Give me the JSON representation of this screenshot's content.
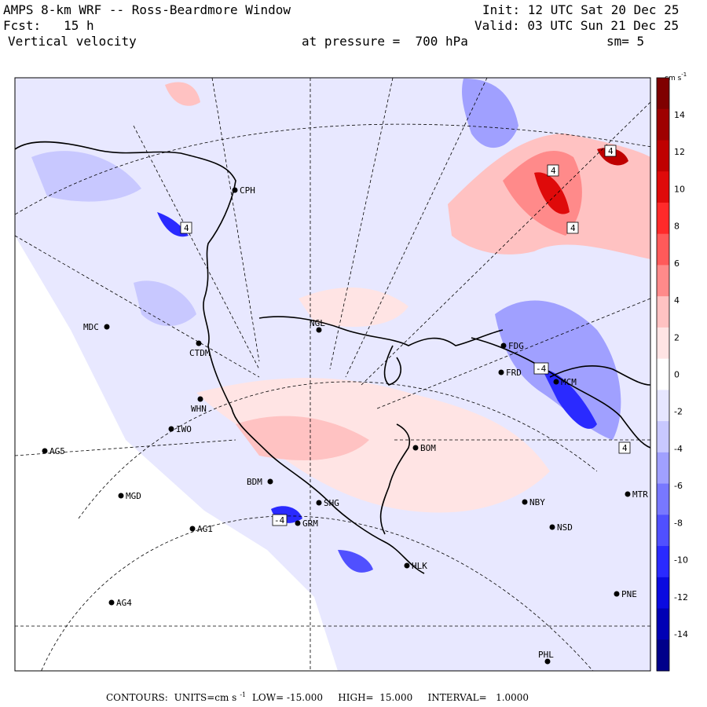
{
  "header": {
    "title": "AMPS 8-km WRF -- Ross-Beardmore Window",
    "forecast": "Fcst:   15 h",
    "variable": "Vertical velocity",
    "init": "Init: 12 UTC Sat 20 Dec 25",
    "valid": "Valid: 03 UTC Sun 21 Dec 25",
    "pressure": "at pressure =  700 hPa",
    "smoothing": "sm= 5"
  },
  "colorbar": {
    "units": "cm s",
    "units_exp": "-1",
    "ticks": [
      "14",
      "12",
      "10",
      "8",
      "6",
      "4",
      "2",
      "0",
      "-2",
      "-4",
      "-6",
      "-8",
      "-10",
      "-12",
      "-14"
    ],
    "colors": [
      "#7f0000",
      "#9e0000",
      "#bf0000",
      "#df0a0a",
      "#ff2a2a",
      "#ff5a5a",
      "#ff8a8a",
      "#ffc2c2",
      "#ffe4e4",
      "#ffffff",
      "#e6e6ff",
      "#c8c8ff",
      "#a0a0ff",
      "#7878ff",
      "#5050ff",
      "#2a2aff",
      "#0a0ae0",
      "#0000b4",
      "#00008a"
    ]
  },
  "stations": [
    {
      "id": "CPH"
    },
    {
      "id": "MDC"
    },
    {
      "id": "CTDM"
    },
    {
      "id": "NGL"
    },
    {
      "id": "WHN"
    },
    {
      "id": "IWO"
    },
    {
      "id": "AG5"
    },
    {
      "id": "BDM"
    },
    {
      "id": "SHG"
    },
    {
      "id": "GRM"
    },
    {
      "id": "MGD"
    },
    {
      "id": "AG1"
    },
    {
      "id": "AG4"
    },
    {
      "id": "BOM"
    },
    {
      "id": "HLK"
    },
    {
      "id": "FDG"
    },
    {
      "id": "FRD"
    },
    {
      "id": "MCM"
    },
    {
      "id": "NBY"
    },
    {
      "id": "MTR"
    },
    {
      "id": "NSD"
    },
    {
      "id": "PNE"
    },
    {
      "id": "PHL"
    }
  ],
  "contour_labels": [
    "4",
    "4",
    "4",
    "4",
    "-4",
    "-4",
    "4"
  ],
  "footer": {
    "contours": "CONTOURS:",
    "units_label": "UNITS=cm s",
    "units_exp": "-1",
    "low": "LOW= -15.000",
    "high": "HIGH=  15.000",
    "interval": "INTERVAL=   1.0000"
  }
}
